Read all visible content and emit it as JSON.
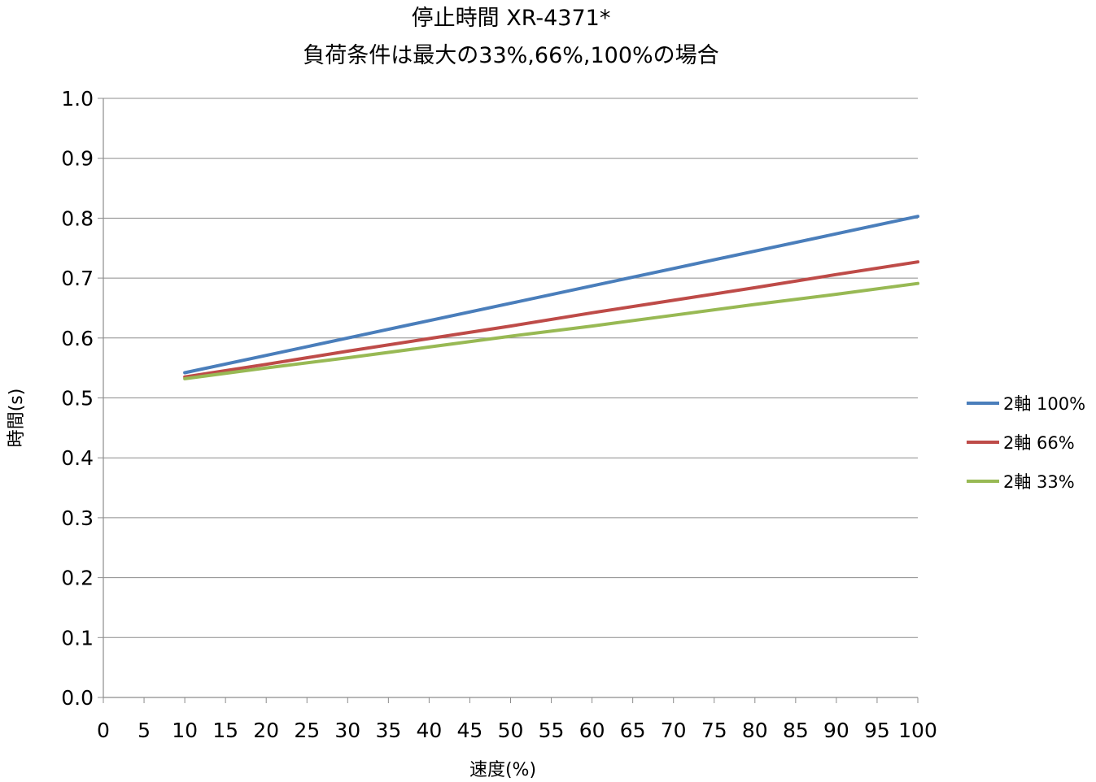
{
  "chart_data": {
    "type": "line",
    "title_lines": [
      "停止時間 XR-4371*",
      "負荷条件は最大の33%,66%,100%の場合"
    ],
    "xlabel": "速度(%)",
    "ylabel": "時間(s)",
    "xlim": [
      0,
      100
    ],
    "ylim": [
      0,
      1.0
    ],
    "x_ticks": [
      0,
      5,
      10,
      15,
      20,
      25,
      30,
      35,
      40,
      45,
      50,
      55,
      60,
      65,
      70,
      75,
      80,
      85,
      90,
      95,
      100
    ],
    "y_ticks": [
      0.0,
      0.1,
      0.2,
      0.3,
      0.4,
      0.5,
      0.6,
      0.7,
      0.8,
      0.9,
      1.0
    ],
    "x_tick_labels": [
      "0",
      "5",
      "10",
      "15",
      "20",
      "25",
      "30",
      "35",
      "40",
      "45",
      "50",
      "55",
      "60",
      "65",
      "70",
      "75",
      "80",
      "85",
      "90",
      "95",
      "100"
    ],
    "y_tick_labels": [
      "0.0",
      "0.1",
      "0.2",
      "0.3",
      "0.4",
      "0.5",
      "0.6",
      "0.7",
      "0.8",
      "0.9",
      "1.0"
    ],
    "grid": "horizontal",
    "legend_position": "right",
    "series": [
      {
        "name": "2軸 100%",
        "color": "#4a7ebb",
        "x": [
          10,
          20,
          30,
          40,
          50,
          60,
          70,
          80,
          90,
          100
        ],
        "y": [
          0.542,
          0.571,
          0.6,
          0.629,
          0.658,
          0.687,
          0.716,
          0.745,
          0.774,
          0.803
        ]
      },
      {
        "name": "2軸 66%",
        "color": "#be4b48",
        "x": [
          10,
          20,
          30,
          40,
          50,
          60,
          70,
          80,
          90,
          100
        ],
        "y": [
          0.535,
          0.556,
          0.578,
          0.599,
          0.62,
          0.642,
          0.663,
          0.684,
          0.706,
          0.727
        ]
      },
      {
        "name": "2軸 33%",
        "color": "#98b954",
        "x": [
          10,
          20,
          30,
          40,
          50,
          60,
          70,
          80,
          90,
          100
        ],
        "y": [
          0.532,
          0.55,
          0.567,
          0.585,
          0.603,
          0.62,
          0.638,
          0.656,
          0.673,
          0.691
        ]
      }
    ]
  }
}
